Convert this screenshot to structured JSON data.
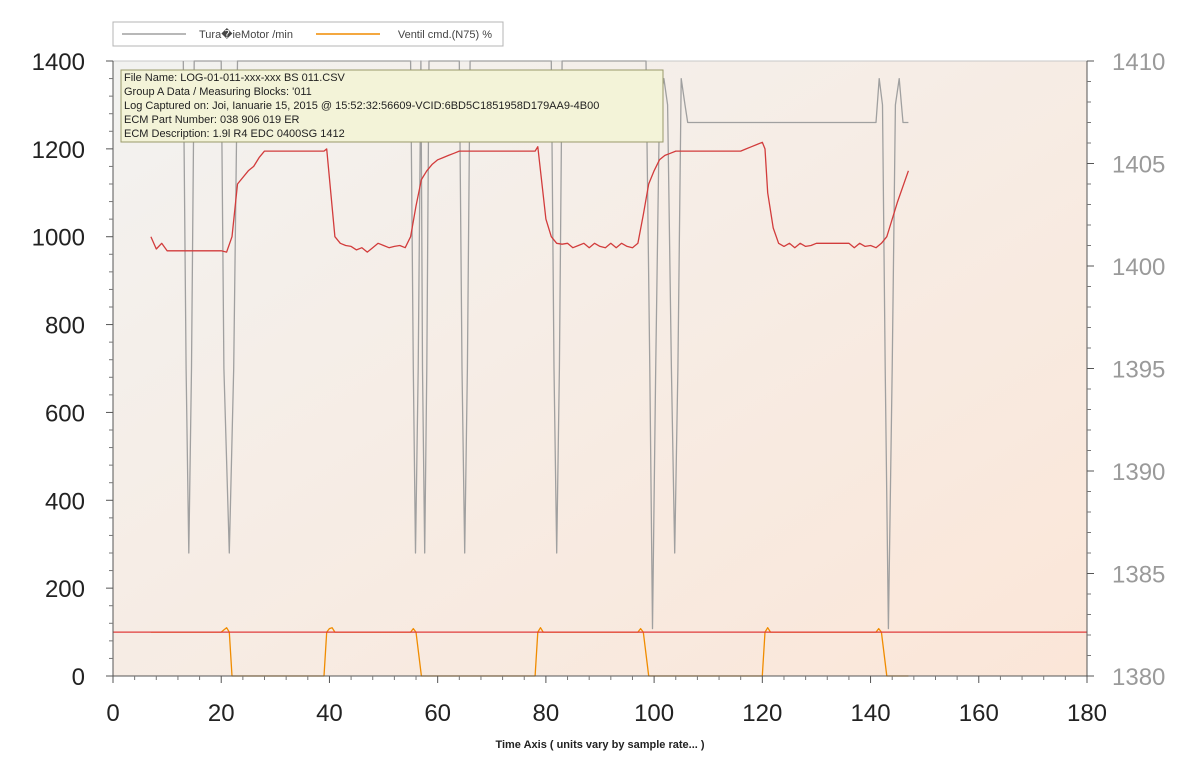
{
  "chart_data": {
    "type": "line",
    "xlabel": "Time Axis ( units vary by sample rate... )",
    "xlim": [
      0,
      180
    ],
    "x_ticks": [
      "0",
      "20",
      "40",
      "60",
      "80",
      "100",
      "120",
      "140",
      "160",
      "180"
    ],
    "y_left_lim": [
      0,
      1400
    ],
    "y_left_ticks": [
      "0",
      "200",
      "400",
      "600",
      "800",
      "1000",
      "1200",
      "1400"
    ],
    "y_right_lim": [
      1380,
      1410
    ],
    "y_right_ticks": [
      "1380",
      "1385",
      "1390",
      "1395",
      "1400",
      "1405",
      "1410"
    ],
    "grid": false,
    "legend_position": "top-left",
    "legend": [
      {
        "label": "Tura�ieMotor /min",
        "color": "#a0a0a0"
      },
      {
        "label": "Ventil cmd.(N75) %",
        "color": "#f08c00"
      }
    ],
    "info_box": [
      "File Name: LOG-01-011-xxx-xxx BS 011.CSV",
      "Group A Data / Measuring Blocks: '011",
      "Log Captured on: Joi, Ianuarie 15, 2015 @ 15:52:32:56609-VCID:6BD5C1851958D179AA9-4B00",
      "ECM Part Number: 038 906 019 ER",
      "ECM Description: 1.9l R4 EDC 0400SG  1412"
    ],
    "series": [
      {
        "name": "Tura�ieMotor /min",
        "color": "#a0a0a0",
        "axis": "left",
        "points": [
          [
            13,
            1400
          ],
          [
            13.5,
            700
          ],
          [
            14,
            280
          ],
          [
            14.5,
            700
          ],
          [
            15,
            1400
          ],
          [
            20,
            1400
          ],
          [
            20.5,
            700
          ],
          [
            21.5,
            280
          ],
          [
            22.3,
            700
          ],
          [
            23,
            1400
          ],
          [
            55,
            1400
          ],
          [
            55.5,
            700
          ],
          [
            55.9,
            280
          ],
          [
            56.4,
            700
          ],
          [
            56.9,
            1400
          ],
          [
            57.2,
            700
          ],
          [
            57.6,
            280
          ],
          [
            58,
            700
          ],
          [
            58.4,
            1400
          ],
          [
            64,
            1400
          ],
          [
            64.5,
            700
          ],
          [
            65,
            280
          ],
          [
            65.5,
            700
          ],
          [
            66,
            1400
          ],
          [
            81,
            1400
          ],
          [
            81.5,
            700
          ],
          [
            82,
            280
          ],
          [
            82.5,
            700
          ],
          [
            83,
            1400
          ],
          [
            98.5,
            1400
          ],
          [
            99.2,
            700
          ],
          [
            99.7,
            108
          ],
          [
            100.3,
            700
          ],
          [
            101,
            1300
          ],
          [
            101.8,
            1360
          ],
          [
            102.5,
            1300
          ],
          [
            103.2,
            700
          ],
          [
            103.8,
            280
          ],
          [
            104.4,
            700
          ],
          [
            105,
            1360
          ],
          [
            105.7,
            1300
          ],
          [
            106.2,
            1260
          ],
          [
            141,
            1260
          ],
          [
            141.6,
            1360
          ],
          [
            142.2,
            1300
          ],
          [
            142.7,
            700
          ],
          [
            143.3,
            108
          ],
          [
            144,
            700
          ],
          [
            144.6,
            1300
          ],
          [
            145.3,
            1360
          ],
          [
            146,
            1260
          ],
          [
            147,
            1260
          ]
        ]
      },
      {
        "name": "Ventil cmd.(N75) %",
        "color": "#f08c00",
        "axis": "left",
        "points": [
          [
            7,
            100
          ],
          [
            20,
            100
          ],
          [
            20.5,
            105
          ],
          [
            21,
            110
          ],
          [
            21.5,
            100
          ],
          [
            22,
            0
          ],
          [
            39,
            0
          ],
          [
            39.5,
            100
          ],
          [
            40,
            108
          ],
          [
            40.5,
            110
          ],
          [
            41,
            100
          ],
          [
            55,
            100
          ],
          [
            55.5,
            108
          ],
          [
            56,
            100
          ],
          [
            56.5,
            50
          ],
          [
            57,
            0
          ],
          [
            78,
            0
          ],
          [
            78.5,
            100
          ],
          [
            79,
            110
          ],
          [
            79.5,
            100
          ],
          [
            97,
            100
          ],
          [
            97.5,
            108
          ],
          [
            98,
            100
          ],
          [
            98.5,
            50
          ],
          [
            99,
            0
          ],
          [
            120,
            0
          ],
          [
            120.5,
            100
          ],
          [
            121,
            110
          ],
          [
            121.5,
            100
          ],
          [
            141,
            100
          ],
          [
            141.5,
            108
          ],
          [
            142,
            100
          ],
          [
            142.5,
            50
          ],
          [
            143,
            0
          ],
          [
            147,
            0
          ]
        ]
      },
      {
        "name": "",
        "color": "#d23c3c",
        "axis": "left",
        "points": [
          [
            7,
            1000
          ],
          [
            8,
            972
          ],
          [
            9,
            985
          ],
          [
            10,
            968
          ],
          [
            20,
            968
          ],
          [
            21,
            965
          ],
          [
            22,
            1000
          ],
          [
            23,
            1120
          ],
          [
            25,
            1150
          ],
          [
            26,
            1160
          ],
          [
            27,
            1180
          ],
          [
            28,
            1195
          ],
          [
            39,
            1195
          ],
          [
            39.5,
            1200
          ],
          [
            41,
            1000
          ],
          [
            42,
            985
          ],
          [
            43,
            980
          ],
          [
            44,
            978
          ],
          [
            45,
            970
          ],
          [
            46,
            975
          ],
          [
            47,
            965
          ],
          [
            48,
            975
          ],
          [
            49,
            985
          ],
          [
            50,
            980
          ],
          [
            51,
            975
          ],
          [
            52,
            978
          ],
          [
            53,
            980
          ],
          [
            54,
            975
          ],
          [
            55,
            1000
          ],
          [
            56,
            1070
          ],
          [
            57,
            1130
          ],
          [
            58,
            1150
          ],
          [
            59,
            1165
          ],
          [
            60,
            1175
          ],
          [
            61,
            1180
          ],
          [
            62,
            1185
          ],
          [
            63,
            1190
          ],
          [
            64,
            1195
          ],
          [
            78,
            1195
          ],
          [
            78.5,
            1205
          ],
          [
            79,
            1150
          ],
          [
            80,
            1040
          ],
          [
            81,
            1000
          ],
          [
            82,
            985
          ],
          [
            83,
            983
          ],
          [
            84,
            985
          ],
          [
            85,
            975
          ],
          [
            86,
            980
          ],
          [
            87,
            985
          ],
          [
            88,
            975
          ],
          [
            89,
            985
          ],
          [
            90,
            978
          ],
          [
            91,
            975
          ],
          [
            92,
            985
          ],
          [
            93,
            975
          ],
          [
            94,
            985
          ],
          [
            95,
            978
          ],
          [
            96,
            975
          ],
          [
            97,
            985
          ],
          [
            98,
            1050
          ],
          [
            99,
            1120
          ],
          [
            100,
            1150
          ],
          [
            101,
            1175
          ],
          [
            102,
            1185
          ],
          [
            103,
            1190
          ],
          [
            104,
            1195
          ],
          [
            116,
            1195
          ],
          [
            117,
            1200
          ],
          [
            118,
            1205
          ],
          [
            119,
            1210
          ],
          [
            120,
            1215
          ],
          [
            120.5,
            1200
          ],
          [
            121,
            1100
          ],
          [
            122,
            1020
          ],
          [
            123,
            985
          ],
          [
            124,
            978
          ],
          [
            125,
            985
          ],
          [
            126,
            975
          ],
          [
            127,
            985
          ],
          [
            128,
            978
          ],
          [
            129,
            980
          ],
          [
            130,
            985
          ],
          [
            136,
            985
          ],
          [
            137,
            975
          ],
          [
            138,
            985
          ],
          [
            139,
            978
          ],
          [
            140,
            980
          ],
          [
            141,
            975
          ],
          [
            142,
            985
          ],
          [
            143,
            1000
          ],
          [
            145,
            1080
          ],
          [
            147,
            1150
          ]
        ]
      },
      {
        "name": "",
        "color": "#e03c3c",
        "axis": "left",
        "points": [
          [
            0,
            100
          ],
          [
            180,
            100
          ]
        ]
      }
    ]
  }
}
